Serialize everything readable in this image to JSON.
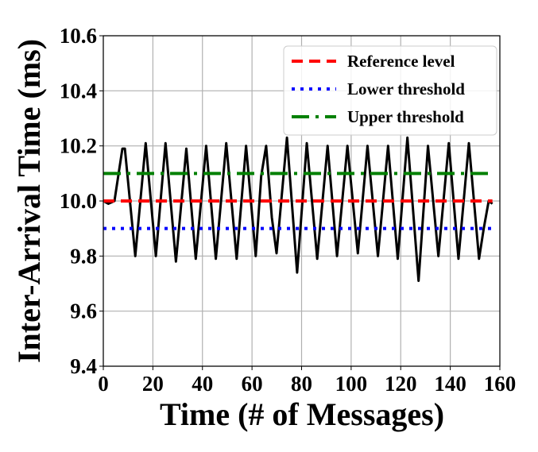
{
  "chart_data": {
    "type": "line",
    "title": "",
    "xlabel": "Time (# of Messages)",
    "ylabel": "Inter-Arrival Time (ms)",
    "xlim": [
      0,
      160
    ],
    "ylim": [
      9.4,
      10.6
    ],
    "xticks": [
      0,
      20,
      40,
      60,
      80,
      100,
      120,
      140,
      160
    ],
    "yticks": [
      9.4,
      9.6,
      9.8,
      10.0,
      10.2,
      10.4,
      10.6
    ],
    "ytick_labels": [
      "9.4",
      "9.6",
      "9.8",
      "10.0",
      "10.2",
      "10.4",
      "10.6"
    ],
    "grid": true,
    "legend_position": "top-right",
    "series": [
      {
        "name": "",
        "color": "#000000",
        "style": "solid",
        "points": [
          [
            0,
            10.0
          ],
          [
            2,
            9.99
          ],
          [
            4.5,
            10.0
          ],
          [
            7.7,
            10.19
          ],
          [
            8.7,
            10.19
          ],
          [
            12.9,
            9.8
          ],
          [
            17.1,
            10.21
          ],
          [
            21.2,
            9.8
          ],
          [
            25.1,
            10.21
          ],
          [
            29.3,
            9.78
          ],
          [
            33.5,
            10.19
          ],
          [
            37.3,
            9.79
          ],
          [
            41.5,
            10.2
          ],
          [
            45.4,
            9.79
          ],
          [
            49.6,
            10.21
          ],
          [
            53.8,
            9.79
          ],
          [
            57.6,
            10.2
          ],
          [
            61.5,
            9.8
          ],
          [
            63.7,
            10.09
          ],
          [
            65.7,
            10.2
          ],
          [
            68,
            9.94
          ],
          [
            69.9,
            9.81
          ],
          [
            74.1,
            10.23
          ],
          [
            78.2,
            9.74
          ],
          [
            82.1,
            10.21
          ],
          [
            86.3,
            9.79
          ],
          [
            90.5,
            10.2
          ],
          [
            94.3,
            9.8
          ],
          [
            98.5,
            10.2
          ],
          [
            102.7,
            9.81
          ],
          [
            106.6,
            10.2
          ],
          [
            110.8,
            9.8
          ],
          [
            114.9,
            10.2
          ],
          [
            118.8,
            9.79
          ],
          [
            122.7,
            10.23
          ],
          [
            127.2,
            9.71
          ],
          [
            131,
            10.2
          ],
          [
            135.2,
            9.8
          ],
          [
            139.4,
            10.21
          ],
          [
            143.3,
            9.79
          ],
          [
            147.5,
            10.21
          ],
          [
            151.6,
            9.79
          ],
          [
            153.5,
            9.9
          ],
          [
            155.5,
            10.0
          ],
          [
            157,
            9.99
          ]
        ]
      },
      {
        "name": "Reference level",
        "color": "#ff0000",
        "style": "dashed",
        "value": 10.0,
        "x_range": [
          0,
          157
        ]
      },
      {
        "name": "Lower threshold",
        "color": "#0000ff",
        "style": "dotted",
        "value": 9.9,
        "x_range": [
          0,
          157
        ]
      },
      {
        "name": "Upper threshold",
        "color": "#008000",
        "style": "dashdot",
        "value": 10.1,
        "x_range": [
          0,
          157
        ]
      }
    ]
  }
}
